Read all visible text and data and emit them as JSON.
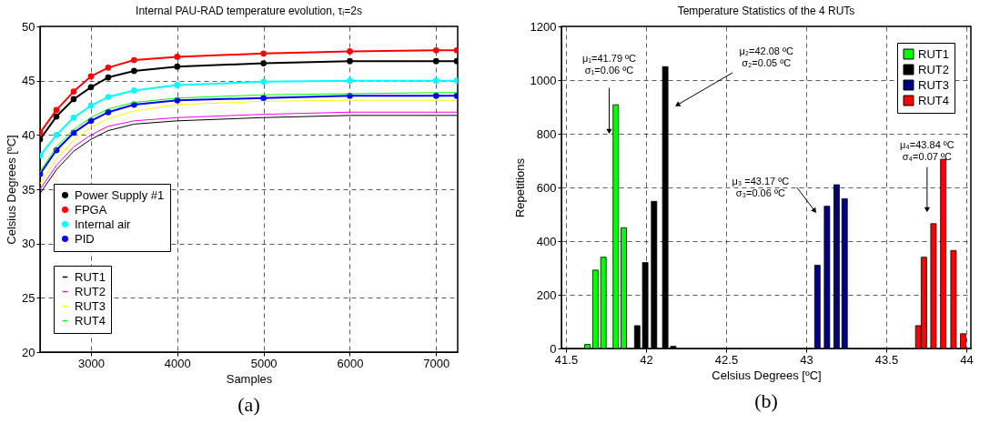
{
  "chart_data": [
    {
      "type": "line",
      "title": "Internal PAU-RAD temperature evolution, τᵢ=2s",
      "xlabel": "Samples",
      "ylabel": "Celsius Degrees [ºC]",
      "x": [
        2410,
        2600,
        2800,
        3000,
        3200,
        3500,
        4000,
        5000,
        6000,
        7000,
        7240
      ],
      "series": [
        {
          "name": "Power Supply #1",
          "color": "#000000",
          "marker": "circle",
          "values": [
            39.6,
            41.7,
            43.3,
            44.4,
            45.3,
            45.9,
            46.3,
            46.6,
            46.8,
            46.8,
            46.8
          ]
        },
        {
          "name": "FPGA",
          "color": "#ff0000",
          "marker": "circle",
          "values": [
            40.2,
            42.3,
            44.0,
            45.4,
            46.2,
            46.9,
            47.2,
            47.5,
            47.7,
            47.8,
            47.8
          ]
        },
        {
          "name": "Internal air",
          "color": "#00ffff",
          "marker": "circle",
          "values": [
            38.1,
            40.0,
            41.6,
            42.7,
            43.5,
            44.1,
            44.6,
            44.9,
            45.0,
            45.0,
            45.0
          ]
        },
        {
          "name": "PID",
          "color": "#0000ff",
          "marker": "circle",
          "values": [
            36.4,
            38.6,
            40.2,
            41.3,
            42.1,
            42.8,
            43.2,
            43.4,
            43.6,
            43.6,
            43.6
          ]
        },
        {
          "name": "RUT1",
          "color": "#000000",
          "values": [
            34.6,
            36.8,
            38.5,
            39.6,
            40.4,
            41.0,
            41.3,
            41.6,
            41.8,
            41.8,
            41.8
          ]
        },
        {
          "name": "RUT2",
          "color": "#ff00ff",
          "values": [
            35.0,
            37.2,
            38.9,
            40.0,
            40.8,
            41.3,
            41.6,
            41.9,
            42.1,
            42.1,
            42.1
          ]
        },
        {
          "name": "RUT3",
          "color": "#ffff00",
          "values": [
            35.5,
            37.8,
            39.5,
            40.7,
            41.5,
            42.2,
            42.8,
            43.1,
            43.2,
            43.2,
            43.2
          ]
        },
        {
          "name": "RUT4",
          "color": "#00ff00",
          "values": [
            36.6,
            38.9,
            40.5,
            41.6,
            42.4,
            43.0,
            43.4,
            43.7,
            43.8,
            43.9,
            43.9
          ]
        }
      ],
      "xlim": [
        2410,
        7250
      ],
      "xticks": [
        3000,
        4000,
        5000,
        6000,
        7000
      ],
      "ylim": [
        20,
        50
      ],
      "yticks": [
        20,
        25,
        30,
        35,
        40,
        45,
        50
      ],
      "grid": true,
      "legend": "bottom left",
      "annotations": [
        "(a)"
      ]
    },
    {
      "type": "bar",
      "title": "Temperature Statistics of the 4 RUTs",
      "xlabel": "Celsius Degrees [ºC]",
      "ylabel": "Repetitions",
      "series": [
        {
          "name": "RUT1",
          "color": "#00ff00",
          "x": [
            41.634,
            41.684,
            41.734,
            41.811,
            41.861
          ],
          "values": [
            15,
            292,
            340,
            908,
            450
          ]
        },
        {
          "name": "RUT2",
          "color": "#000000",
          "x": [
            41.945,
            41.995,
            42.05,
            42.12,
            42.17
          ],
          "values": [
            85,
            320,
            548,
            1050,
            8
          ]
        },
        {
          "name": "RUT3",
          "color": "#000080",
          "x": [
            43.07,
            43.13,
            43.19,
            43.24
          ],
          "values": [
            310,
            530,
            610,
            558
          ]
        },
        {
          "name": "RUT4",
          "color": "#ff0000",
          "x": [
            43.7,
            43.735,
            43.795,
            43.856,
            43.92,
            43.98
          ],
          "values": [
            85,
            340,
            465,
            705,
            365,
            55
          ]
        }
      ],
      "xlim": [
        41.5,
        44
      ],
      "xticks": [
        41.5,
        42,
        42.5,
        43,
        43.5,
        44
      ],
      "ylim": [
        0,
        1200
      ],
      "yticks": [
        0,
        200,
        400,
        600,
        800,
        1000,
        1200
      ],
      "grid": true,
      "legend": "top right",
      "annotations": [
        {
          "text": "μ₁=41.79 ºC\nσ₁=0.06 ºC",
          "x": 41.77,
          "y": 812
        },
        {
          "text": "μ₂=42.08 ºC\nσ₂=0.05 ºC",
          "x": 42.2,
          "y": 909
        },
        {
          "text": "μ₃ =43.17 ºC\nσ₃=0.06 ºC",
          "x": 43.05,
          "y": 515
        },
        {
          "text": "μ₄=43.84 ºC\nσ₄=0.07 ºC",
          "x": 43.755,
          "y": 520
        },
        "(b)"
      ]
    }
  ]
}
